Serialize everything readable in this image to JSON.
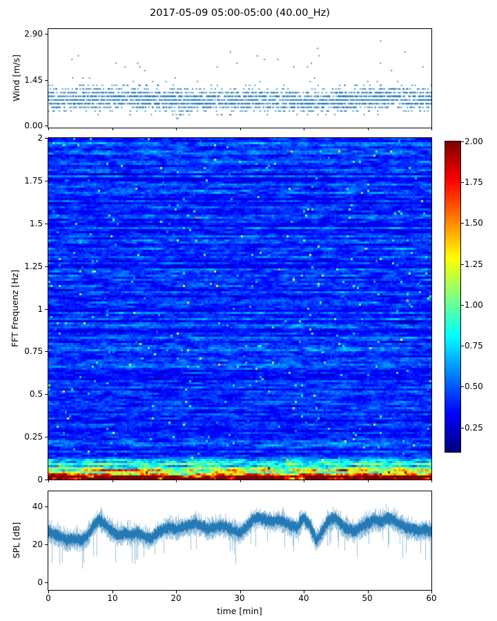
{
  "title": "2017-05-09 05:00-05:00 (40.00_Hz)",
  "colors": {
    "accent": "#1f77b4",
    "colormap": "jet"
  },
  "wind": {
    "ylabel": "Wind [m/s]",
    "yticks": [
      "2.90",
      "1.45",
      "0.00"
    ]
  },
  "spectrogram": {
    "ylabel": "FFT Frequenz [Hz]",
    "yticks": [
      "2",
      "1.75",
      "1.5",
      "1.25",
      "1",
      "0.75",
      "0.5",
      "0.25",
      "0"
    ]
  },
  "colorbar": {
    "ticks": [
      "2.00",
      "1.75",
      "1.50",
      "1.25",
      "1.00",
      "0.75",
      "0.50",
      "0.25"
    ]
  },
  "spl": {
    "ylabel": "SPL [dB]",
    "yticks": [
      "40",
      "20",
      "0"
    ]
  },
  "xaxis": {
    "label": "time [min]",
    "ticks": [
      "0",
      "10",
      "20",
      "30",
      "40",
      "50",
      "60"
    ]
  },
  "chart_data": [
    {
      "type": "scatter",
      "title": "2017-05-09 05:00-05:00 (40.00_Hz)",
      "ylabel": "Wind [m/s]",
      "xlim": [
        0,
        60
      ],
      "ylim": [
        0,
        2.9
      ],
      "yticks": [
        0.0,
        1.45,
        2.9
      ],
      "marker_color": "#1f77b4",
      "approx_mean_per_5min": [
        0.8,
        0.85,
        0.9,
        0.85,
        0.8,
        0.78,
        0.82,
        0.8,
        0.75,
        0.8,
        0.85,
        0.9,
        0.82
      ],
      "description": "Dense quantized wind-speed samples; most values lie between 0.2 and 1.5 m/s with sporadic gusts up to 2.9 m/s spread over the full hour."
    },
    {
      "type": "heatmap",
      "ylabel": "FFT Frequenz [Hz]",
      "xlim": [
        0,
        60
      ],
      "ylim": [
        0,
        2
      ],
      "value_range": [
        0,
        2
      ],
      "colorbar_ticks": [
        0.25,
        0.5,
        0.75,
        1.0,
        1.25,
        1.5,
        1.75,
        2.0
      ],
      "colorbar_range_estimate": [
        0.1,
        2.0
      ],
      "colormap": "jet",
      "description": "Spectrogram dominated by values 0.2-0.5 (blue) with horizontal cyan/green streaks of 0.5-1.0 and intermittent yellow bursts; the lowest frequency band (< 0.13 Hz) reaches 1.0-2.0 (orange to dark red) across the whole hour."
    },
    {
      "type": "line",
      "ylabel": "SPL [dB]",
      "xlabel": "time [min]",
      "xlim": [
        0,
        60
      ],
      "ylim": [
        0,
        48
      ],
      "yticks": [
        0,
        20,
        40
      ],
      "xticks": [
        0,
        10,
        20,
        30,
        40,
        50,
        60
      ],
      "line_color": "#1f77b4",
      "x_minutes": [
        0,
        1,
        2,
        3,
        4,
        5,
        6,
        7,
        8,
        9,
        10,
        11,
        12,
        13,
        14,
        15,
        16,
        17,
        18,
        19,
        20,
        21,
        22,
        23,
        24,
        25,
        26,
        27,
        28,
        29,
        30,
        31,
        32,
        33,
        34,
        35,
        36,
        37,
        38,
        39,
        40,
        41,
        42,
        43,
        44,
        45,
        46,
        47,
        48,
        49,
        50,
        51,
        52,
        53,
        54,
        55,
        56,
        57,
        58,
        59,
        60
      ],
      "mean_spl_db": [
        27,
        25,
        24,
        22,
        23,
        22,
        24,
        30,
        33,
        30,
        27,
        25,
        26,
        25,
        26,
        24,
        23,
        26,
        28,
        29,
        28,
        29,
        30,
        31,
        30,
        28,
        29,
        30,
        29,
        27,
        26,
        29,
        33,
        34,
        33,
        32,
        33,
        32,
        30,
        29,
        34,
        30,
        22,
        27,
        33,
        34,
        30,
        28,
        27,
        29,
        31,
        33,
        32,
        34,
        33,
        31,
        29,
        28,
        27,
        28,
        27
      ],
      "noise_band_db": 7,
      "description": "Noisy sound-pressure-level trace fluctuating around 22-34 dB with downward spikes to ~10 dB and peaks near 45 dB."
    }
  ]
}
